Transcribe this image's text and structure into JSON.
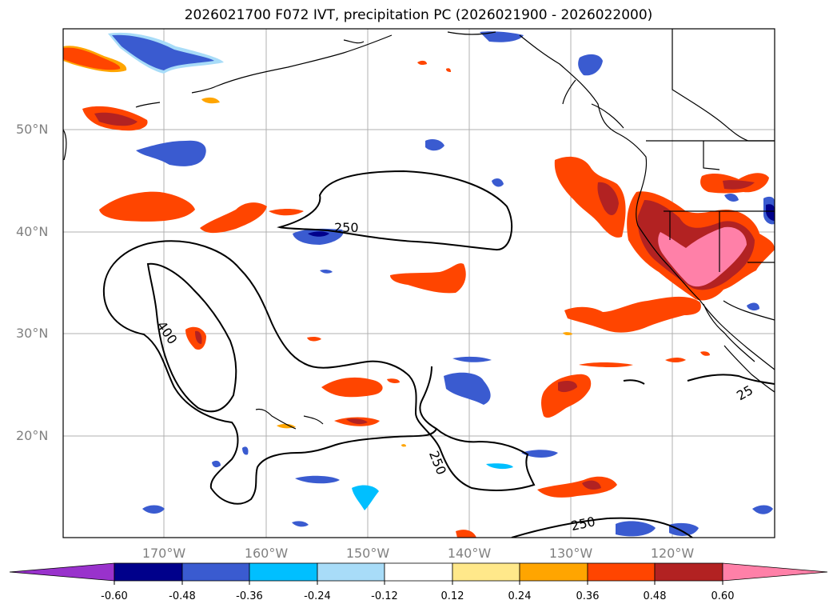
{
  "title": "2026021700 F072 IVT, precipitation PC (2026021900 - 2026022000)",
  "lat_labels": [
    "50°N",
    "40°N",
    "30°N",
    "20°N"
  ],
  "lon_labels": [
    "170°W",
    "160°W",
    "150°W",
    "140°W",
    "130°W",
    "120°W"
  ],
  "contour_labels": [
    "250",
    "400",
    "250",
    "250",
    "25"
  ],
  "colorbar": {
    "ticks": [
      "-0.60",
      "-0.48",
      "-0.36",
      "-0.24",
      "-0.12",
      "0.12",
      "0.24",
      "0.36",
      "0.48",
      "0.60"
    ],
    "colors": [
      "#9932cc",
      "#00008b",
      "#3a5bd0",
      "#00bfff",
      "#a8dcf8",
      "#ffffff",
      "#ffe88a",
      "#ffa500",
      "#ff4500",
      "#b22222",
      "#ff80a8"
    ]
  },
  "colors": {
    "coast": "#000000",
    "grid": "#a8a8a8",
    "contour": "#000000"
  }
}
